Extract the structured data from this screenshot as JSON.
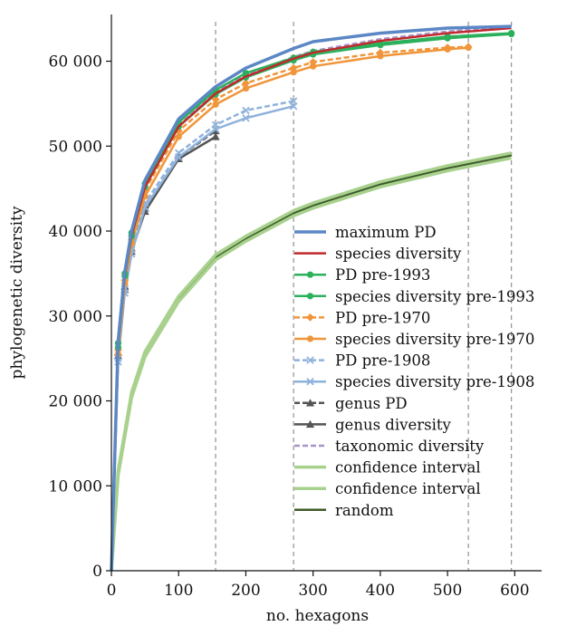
{
  "chart_data": {
    "type": "line",
    "title": "",
    "xlabel": "no. hexagons",
    "ylabel": "phylogenetic diversity",
    "xlim": [
      0,
      640
    ],
    "ylim": [
      0,
      65500
    ],
    "x_ticks": [
      0,
      100,
      200,
      300,
      400,
      500,
      600
    ],
    "x_tick_labels": [
      "0",
      "100",
      "200",
      "300",
      "400",
      "500",
      "600"
    ],
    "y_ticks": [
      0,
      10000,
      20000,
      30000,
      40000,
      50000,
      60000
    ],
    "y_tick_labels": [
      "0",
      "10 000",
      "20 000",
      "30 000",
      "40 000",
      "50 000",
      "60 000"
    ],
    "grid": false,
    "legend_position": "lower-right",
    "vertical_reference_lines_x": [
      155,
      271,
      531,
      595
    ],
    "series": [
      {
        "name": "maximum PD",
        "color": "#5b87c5",
        "dash": "solid",
        "marker": "none",
        "width": 3.5,
        "x": [
          0,
          10,
          20,
          30,
          50,
          100,
          155,
          200,
          271,
          300,
          400,
          500,
          595
        ],
        "y": [
          0,
          27000,
          35200,
          40000,
          46000,
          53200,
          57000,
          59200,
          61500,
          62300,
          63300,
          63900,
          64100
        ]
      },
      {
        "name": "species diversity",
        "color": "#c0282d",
        "dash": "solid",
        "marker": "none",
        "width": 2.5,
        "x": [
          0,
          10,
          20,
          30,
          50,
          100,
          155,
          200,
          271,
          300,
          400,
          500,
          595
        ],
        "y": [
          0,
          26500,
          34800,
          39500,
          45200,
          52300,
          56200,
          58200,
          60300,
          61000,
          62400,
          63300,
          63900
        ]
      },
      {
        "name": "PD pre-1993",
        "color": "#2bb05b",
        "dash": "solid",
        "marker": "circle",
        "width": 2.5,
        "x": [
          0,
          10,
          20,
          30,
          50,
          100,
          155,
          200,
          271,
          300,
          400,
          500,
          595
        ],
        "y": [
          0,
          26800,
          35000,
          39800,
          45600,
          52800,
          56600,
          58600,
          60400,
          61100,
          62100,
          62900,
          63300
        ]
      },
      {
        "name": "species diversity pre-1993",
        "color": "#2bb05b",
        "dash": "solid",
        "marker": "circle",
        "width": 2.5,
        "x": [
          0,
          10,
          20,
          30,
          50,
          100,
          155,
          200,
          271,
          300,
          400,
          500,
          595
        ],
        "y": [
          0,
          26300,
          34700,
          39400,
          45200,
          52300,
          56100,
          58100,
          60100,
          60800,
          61900,
          62700,
          63200
        ]
      },
      {
        "name": "PD pre-1970",
        "color": "#f0953a",
        "dash": "dashed",
        "marker": "diamond",
        "width": 2.5,
        "x": [
          0,
          10,
          20,
          30,
          50,
          100,
          155,
          200,
          271,
          300,
          400,
          500,
          531
        ],
        "y": [
          0,
          26000,
          34200,
          39000,
          44800,
          51800,
          55500,
          57400,
          59200,
          59900,
          61000,
          61600,
          61700
        ]
      },
      {
        "name": "species diversity pre-1970",
        "color": "#f0953a",
        "dash": "solid",
        "marker": "circle",
        "width": 2.5,
        "x": [
          0,
          10,
          20,
          30,
          50,
          100,
          155,
          200,
          271,
          300,
          400,
          500,
          531
        ],
        "y": [
          0,
          25500,
          33800,
          38500,
          44100,
          51100,
          54900,
          56800,
          58700,
          59400,
          60600,
          61400,
          61600
        ]
      },
      {
        "name": "PD pre-1908",
        "color": "#8fb2dc",
        "dash": "dashed",
        "marker": "x",
        "width": 2.5,
        "x": [
          0,
          10,
          20,
          30,
          50,
          100,
          155,
          200,
          271
        ],
        "y": [
          0,
          25000,
          33200,
          37800,
          43300,
          49200,
          52500,
          54200,
          55300
        ]
      },
      {
        "name": "species diversity pre-1908",
        "color": "#8fb2dc",
        "dash": "solid",
        "marker": "x",
        "width": 2.5,
        "x": [
          0,
          10,
          20,
          30,
          50,
          100,
          155,
          200,
          271
        ],
        "y": [
          0,
          24600,
          32700,
          37300,
          42800,
          48700,
          52000,
          53300,
          54700
        ]
      },
      {
        "name": "genus PD",
        "color": "#555555",
        "dash": "dashed",
        "marker": "triangle",
        "width": 2.5,
        "x": [
          0,
          10,
          20,
          30,
          50,
          100,
          155
        ],
        "y": [
          0,
          25700,
          33500,
          38000,
          42700,
          48700,
          51800
        ]
      },
      {
        "name": "genus diversity",
        "color": "#555555",
        "dash": "solid",
        "marker": "triangle",
        "width": 2.5,
        "x": [
          0,
          10,
          20,
          30,
          50,
          100,
          155
        ],
        "y": [
          0,
          25300,
          33100,
          37600,
          42300,
          48500,
          51100
        ]
      },
      {
        "name": "taxonomic diversity",
        "color": "#a894c8",
        "dash": "dashed",
        "marker": "none",
        "width": 2.5,
        "x": [
          0,
          10,
          20,
          30,
          50,
          100,
          155,
          200,
          271,
          300,
          400,
          500,
          595
        ],
        "y": [
          0,
          26400,
          34700,
          39600,
          45500,
          52400,
          56300,
          58400,
          60500,
          61200,
          62600,
          63500,
          64000
        ]
      },
      {
        "name": "confidence interval",
        "color": "#a9d18e",
        "dash": "solid",
        "marker": "none",
        "width": 3.5,
        "x": [
          0,
          10,
          30,
          50,
          100,
          155,
          200,
          271,
          300,
          400,
          500,
          595
        ],
        "y": [
          0,
          11800,
          21000,
          25800,
          32300,
          37200,
          39400,
          42400,
          43300,
          45800,
          47700,
          49200
        ]
      },
      {
        "name": "confidence interval",
        "color": "#a9d18e",
        "dash": "solid",
        "marker": "none",
        "width": 3.5,
        "x": [
          0,
          10,
          30,
          50,
          100,
          155,
          200,
          271,
          300,
          400,
          500,
          595
        ],
        "y": [
          0,
          11200,
          20400,
          25200,
          31700,
          36600,
          38800,
          41800,
          42700,
          45200,
          47100,
          48600
        ]
      },
      {
        "name": "random",
        "color": "#3d5a2a",
        "dash": "solid",
        "marker": "none",
        "width": 2.5,
        "x": [
          0,
          10,
          30,
          50,
          100,
          155,
          200,
          271,
          300,
          400,
          500,
          595
        ],
        "y": [
          0,
          11500,
          20700,
          25500,
          32000,
          36900,
          39100,
          42100,
          43000,
          45500,
          47400,
          48900
        ]
      }
    ]
  }
}
